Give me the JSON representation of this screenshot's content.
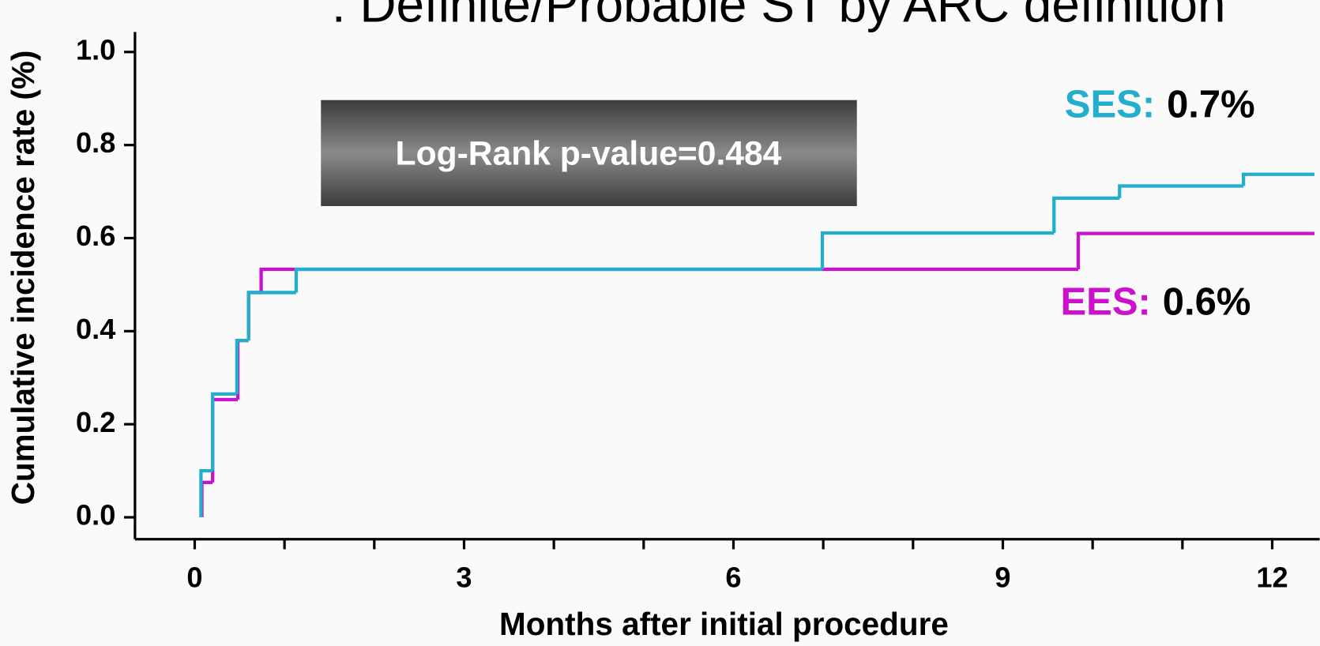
{
  "chart_data": {
    "type": "line",
    "drawstyle": "steps-post",
    "title": ": Definite/Probable ST by ARC definition",
    "xlabel": "Months after initial procedure",
    "ylabel": "Cumulative incidence rate (%)",
    "xlim": [
      -0.665,
      12.5
    ],
    "ylim": [
      -0.047,
      1.043
    ],
    "xticks": [
      0,
      3,
      6,
      9,
      12
    ],
    "xminor_ticks": [
      1,
      2,
      4,
      5,
      7,
      8,
      10,
      11
    ],
    "yticks": [
      {
        "value": 0,
        "label": "0.0"
      },
      0.2,
      0.4,
      0.6,
      0.8,
      {
        "value": 1,
        "label": "1.0"
      }
    ],
    "annotation": "Log-Rank p-value=0.484",
    "series": [
      {
        "name": "EES:",
        "color": "#cc11cc",
        "final_label": "0.6%",
        "x": [
          0.08,
          0.08,
          0.2,
          0.48,
          0.6,
          0.74,
          9.84,
          12.47
        ],
        "values": [
          0,
          0.075,
          0.253,
          0.38,
          0.483,
          0.533,
          0.61,
          0.61
        ]
      },
      {
        "name": "SES:",
        "color": "#22aecc",
        "final_label": "0.7%",
        "x": [
          0.07,
          0.07,
          0.2,
          0.47,
          0.6,
          1.13,
          6.99,
          9.57,
          10.3,
          11.68,
          12.47
        ],
        "values": [
          0,
          0.1,
          0.265,
          0.38,
          0.483,
          0.533,
          0.611,
          0.686,
          0.712,
          0.737,
          0.737
        ]
      }
    ]
  }
}
